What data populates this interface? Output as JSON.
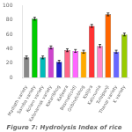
{
  "chart_data": {
    "type": "bar",
    "title": "Figure 7: Hydrolysis Index of rice",
    "categories": [
      "Madiath variety",
      "Samba variety",
      "Kolam variety",
      "Kalanamak variety",
      "Kataribhog",
      "Kaljeera",
      "Basmati(old)",
      "Gobindobhog",
      "Kalijira",
      "Kalonunia",
      "Tulaipanji",
      "Thanai variety",
      "K variety"
    ],
    "values": [
      28,
      82,
      28,
      42,
      22,
      38,
      37,
      36,
      72,
      44,
      88,
      36,
      60
    ],
    "errors": [
      2,
      2,
      2,
      2,
      2,
      2,
      2,
      2,
      2,
      2,
      2,
      2,
      2
    ],
    "colors": [
      "#888888",
      "#00cc00",
      "#00bbbb",
      "#cc44cc",
      "#2222cc",
      "#ff6688",
      "#ff66ff",
      "#ffaa00",
      "#ff3333",
      "#ff88cc",
      "#ff6600",
      "#6666ff",
      "#99cc00"
    ],
    "ylim": [
      0,
      100
    ],
    "yticks": [
      0,
      20,
      40,
      60,
      80,
      100
    ],
    "grid": false
  }
}
